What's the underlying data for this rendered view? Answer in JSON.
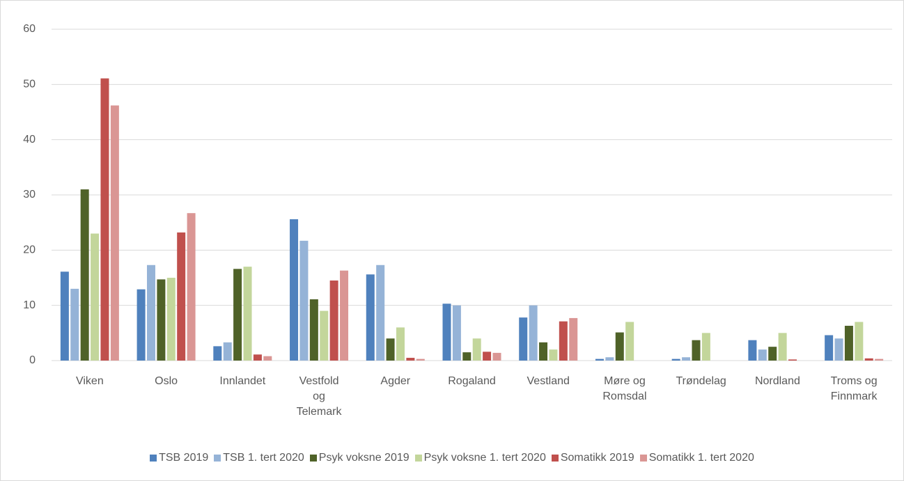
{
  "chart_data": {
    "type": "bar",
    "categories": [
      "Viken",
      "Oslo",
      "Innlandet",
      "Vestfold og Telemark",
      "Agder",
      "Rogaland",
      "Vestland",
      "Møre og Romsdal",
      "Trøndelag",
      "Nordland",
      "Troms og Finnmark"
    ],
    "series": [
      {
        "name": "TSB 2019",
        "color": "#4f81bd",
        "values": [
          16.1,
          12.9,
          2.6,
          25.6,
          15.6,
          10.3,
          7.8,
          0.3,
          0.3,
          3.7,
          4.6
        ]
      },
      {
        "name": "TSB 1. tert 2020",
        "color": "#95b3d7",
        "values": [
          13.0,
          17.3,
          3.3,
          21.7,
          17.3,
          10.0,
          10.0,
          0.6,
          0.6,
          2.0,
          4.0
        ]
      },
      {
        "name": "Psyk voksne 2019",
        "color": "#4f6228",
        "values": [
          31.0,
          14.7,
          16.6,
          11.1,
          4.0,
          1.5,
          3.3,
          5.1,
          3.7,
          2.5,
          6.3
        ]
      },
      {
        "name": "Psyk voksne 1. tert 2020",
        "color": "#c3d69b",
        "values": [
          23.0,
          15.0,
          17.0,
          9.0,
          6.0,
          4.0,
          2.0,
          7.0,
          5.0,
          5.0,
          7.0
        ]
      },
      {
        "name": "Somatikk 2019",
        "color": "#c0504d",
        "values": [
          51.1,
          23.2,
          1.1,
          14.5,
          0.5,
          1.6,
          7.1,
          0,
          0,
          0.2,
          0.4
        ]
      },
      {
        "name": "Somatikk 1. tert 2020",
        "color": "#da9694",
        "values": [
          46.2,
          26.7,
          0.8,
          16.3,
          0.3,
          1.4,
          7.7,
          0,
          0,
          0,
          0.3
        ]
      }
    ],
    "ylim": [
      0,
      60
    ],
    "yticks": [
      0,
      10,
      20,
      30,
      40,
      50,
      60
    ],
    "grid": true,
    "legend": "bottom"
  }
}
